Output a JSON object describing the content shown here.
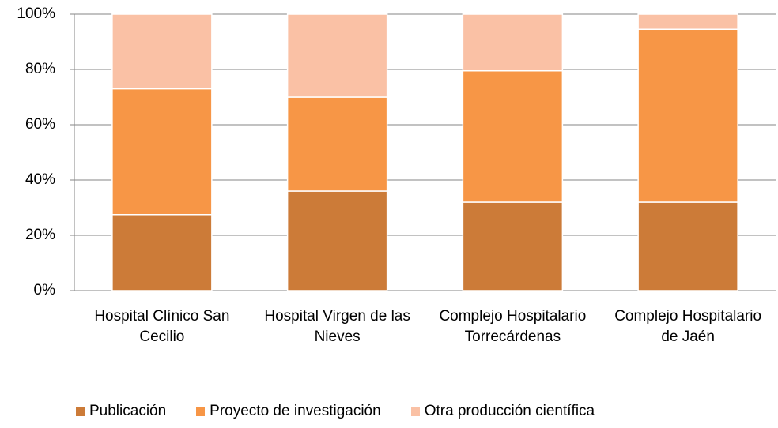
{
  "chart_data": {
    "type": "stacked_bar",
    "categories": [
      "Hospital Clínico San Cecilio",
      "Hospital Virgen de las Nieves",
      "Complejo Hospitalario Torrecárdenas",
      "Complejo Hospitalario de Jaén"
    ],
    "series": [
      {
        "name": "Publicación",
        "color": "#cc7b38",
        "values": [
          27.5,
          36,
          32,
          32
        ]
      },
      {
        "name": "Proyecto de investigación",
        "color": "#f79646",
        "values": [
          45.5,
          34,
          47.5,
          62.5
        ]
      },
      {
        "name": "Otra producción científica",
        "color": "#fac1a5",
        "values": [
          27,
          30,
          20.5,
          5.5
        ]
      }
    ],
    "ylim": [
      0,
      100
    ],
    "yticks": [
      {
        "value": 0,
        "label": "0%"
      },
      {
        "value": 20,
        "label": "20%"
      },
      {
        "value": 40,
        "label": "40%"
      },
      {
        "value": 60,
        "label": "60%"
      },
      {
        "value": 80,
        "label": "80%"
      },
      {
        "value": 100,
        "label": "100%"
      }
    ],
    "grid": true,
    "legend": "bottom"
  }
}
